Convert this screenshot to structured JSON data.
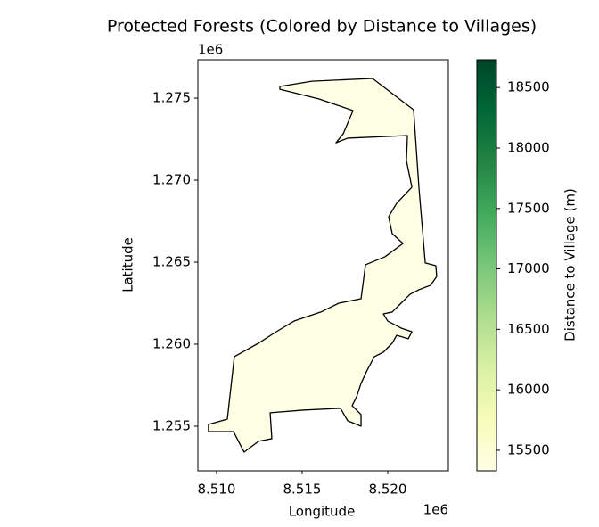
{
  "chart_data": {
    "type": "map",
    "title": "Protected Forests (Colored by Distance to Villages)",
    "x_label": "Longitude",
    "y_label": "Latitude",
    "x_offset_label": "1e6",
    "y_offset_label": "1e6",
    "xlim": [
      8508910,
      8523540
    ],
    "ylim": [
      1252280,
      1277340
    ],
    "xticks": [
      {
        "value": 8510000,
        "label": "8.510"
      },
      {
        "value": 8515000,
        "label": "8.515"
      },
      {
        "value": 8520000,
        "label": "8.520"
      }
    ],
    "yticks": [
      {
        "value": 1255000,
        "label": "1.255"
      },
      {
        "value": 1260000,
        "label": "1.260"
      },
      {
        "value": 1265000,
        "label": "1.265"
      },
      {
        "value": 1270000,
        "label": "1.270"
      },
      {
        "value": 1275000,
        "label": "1.275"
      }
    ],
    "features": [
      {
        "value": 15330,
        "x": [
          8513700,
          8515570,
          8519110,
          8521510,
          8521820,
          8522190,
          8522810,
          8522860,
          8522500,
          8521820,
          8521300,
          8520780,
          8520260,
          8519740,
          8520000,
          8520780,
          8521410,
          8521200,
          8520520,
          8520260,
          8519740,
          8519220,
          8518800,
          8518440,
          8518180,
          8517920,
          8518440,
          8518440,
          8517660,
          8517240,
          8515050,
          8513130,
          8513230,
          8512450,
          8511610,
          8510990,
          8509530,
          8509530,
          8510630,
          8511040,
          8512450,
          8513490,
          8514530,
          8516090,
          8517140,
          8518440,
          8518700,
          8519840,
          8520890,
          8520260,
          8520050,
          8520520,
          8521410,
          8521090,
          8521150,
          8517660,
          8516980,
          8517400,
          8517970,
          8515990,
          8513700
        ],
        "y": [
          1275710,
          1276030,
          1276200,
          1274290,
          1269570,
          1264950,
          1264780,
          1264130,
          1263590,
          1263320,
          1263040,
          1262500,
          1261960,
          1261850,
          1261410,
          1260980,
          1260760,
          1260330,
          1260540,
          1260060,
          1259510,
          1259240,
          1258420,
          1257610,
          1256790,
          1256250,
          1255710,
          1255000,
          1255330,
          1256090,
          1255980,
          1255820,
          1254240,
          1254080,
          1253420,
          1254670,
          1254670,
          1255110,
          1255430,
          1259240,
          1260060,
          1260760,
          1261410,
          1261960,
          1262500,
          1262770,
          1264840,
          1265330,
          1266140,
          1266740,
          1267770,
          1268590,
          1269570,
          1271200,
          1272720,
          1272560,
          1272280,
          1272830,
          1274240,
          1274950,
          1275540
        ]
      }
    ],
    "edge_color": "#000000",
    "colorbar": {
      "label": "Distance to Village (m)",
      "colormap": "YlGn",
      "lim": [
        15330,
        18730
      ],
      "ticks": [
        15500,
        16000,
        16500,
        17000,
        17500,
        18000,
        18500
      ]
    }
  }
}
